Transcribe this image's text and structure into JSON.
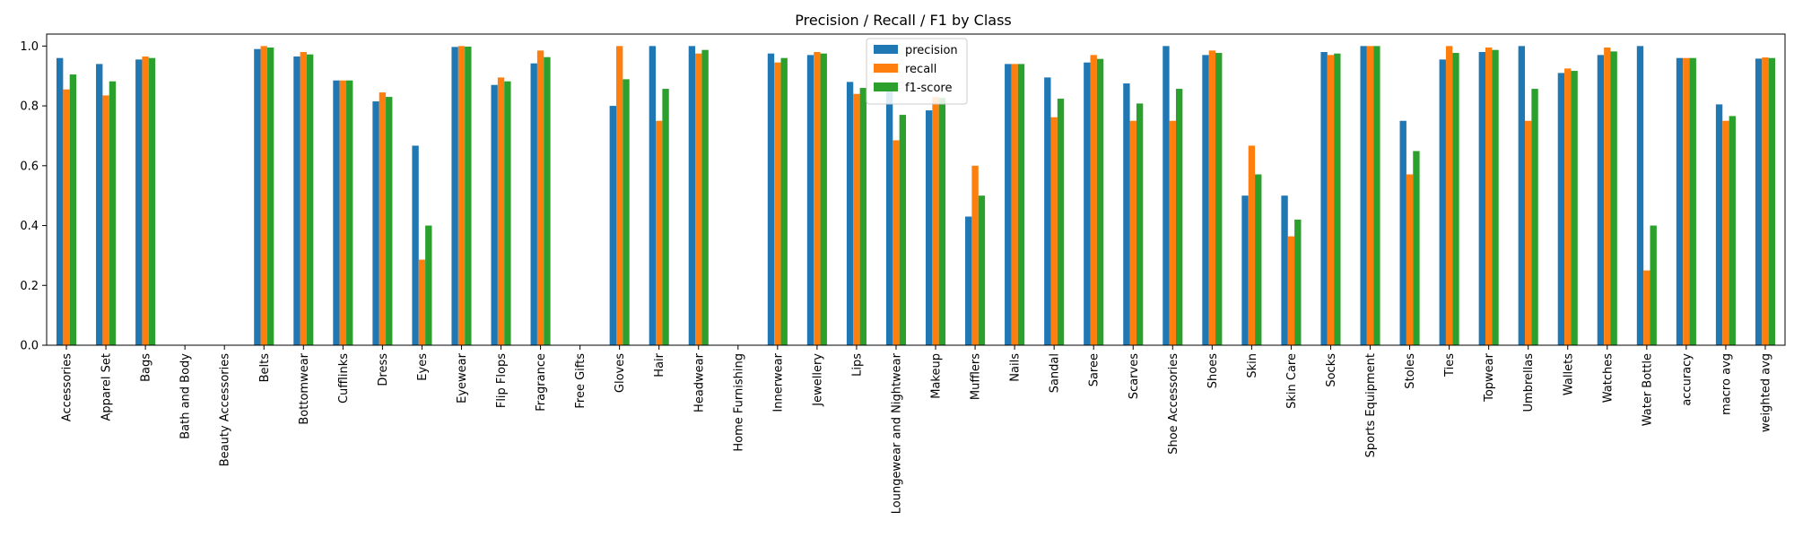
{
  "chart_data": {
    "type": "bar",
    "title": "Precision / Recall / F1 by Class",
    "xlabel": "",
    "ylabel": "",
    "ylim": [
      0,
      1.04
    ],
    "yticks": [
      "0.0",
      "0.2",
      "0.4",
      "0.6",
      "0.8",
      "1.0"
    ],
    "legend_position": "top-center",
    "grid": false,
    "categories": [
      "Accessories",
      "Apparel Set",
      "Bags",
      "Bath and Body",
      "Beauty Accessories",
      "Belts",
      "Bottomwear",
      "Cufflinks",
      "Dress",
      "Eyes",
      "Eyewear",
      "Flip Flops",
      "Fragrance",
      "Free Gifts",
      "Gloves",
      "Hair",
      "Headwear",
      "Home Furnishing",
      "Innerwear",
      "Jewellery",
      "Lips",
      "Loungewear and Nightwear",
      "Makeup",
      "Mufflers",
      "Nails",
      "Sandal",
      "Saree",
      "Scarves",
      "Shoe Accessories",
      "Shoes",
      "Skin",
      "Skin Care",
      "Socks",
      "Sports Equipment",
      "Stoles",
      "Ties",
      "Topwear",
      "Umbrellas",
      "Wallets",
      "Watches",
      "Water Bottle",
      "accuracy",
      "macro avg",
      "weighted avg"
    ],
    "series": [
      {
        "name": "precision",
        "color": "#1f77b4",
        "values": [
          0.96,
          0.94,
          0.955,
          0,
          0,
          0.99,
          0.965,
          0.885,
          0.815,
          0.667,
          0.997,
          0.87,
          0.942,
          0,
          0.8,
          1.0,
          1.0,
          0,
          0.975,
          0.97,
          0.88,
          0.87,
          0.785,
          0.43,
          0.94,
          0.895,
          0.945,
          0.875,
          1.0,
          0.97,
          0.5,
          0.5,
          0.98,
          1.0,
          0.75,
          0.955,
          0.98,
          1.0,
          0.91,
          0.97,
          1.0,
          0.96,
          0.805,
          0.958
        ]
      },
      {
        "name": "recall",
        "color": "#ff7f0e",
        "values": [
          0.855,
          0.835,
          0.965,
          0,
          0,
          1.0,
          0.98,
          0.885,
          0.845,
          0.286,
          1.0,
          0.895,
          0.985,
          0,
          1.0,
          0.75,
          0.975,
          0,
          0.945,
          0.98,
          0.84,
          0.685,
          0.83,
          0.6,
          0.94,
          0.762,
          0.97,
          0.75,
          0.75,
          0.985,
          0.667,
          0.364,
          0.97,
          1.0,
          0.571,
          1.0,
          0.995,
          0.75,
          0.925,
          0.995,
          0.25,
          0.96,
          0.75,
          0.962
        ]
      },
      {
        "name": "f1-score",
        "color": "#2ca02c",
        "values": [
          0.905,
          0.882,
          0.96,
          0,
          0,
          0.995,
          0.972,
          0.885,
          0.83,
          0.4,
          0.998,
          0.882,
          0.963,
          0,
          0.889,
          0.857,
          0.987,
          0,
          0.96,
          0.975,
          0.86,
          0.77,
          0.827,
          0.5,
          0.94,
          0.824,
          0.957,
          0.808,
          0.857,
          0.977,
          0.571,
          0.42,
          0.975,
          1.0,
          0.649,
          0.977,
          0.987,
          0.857,
          0.917,
          0.982,
          0.4,
          0.96,
          0.766,
          0.96
        ]
      }
    ]
  }
}
